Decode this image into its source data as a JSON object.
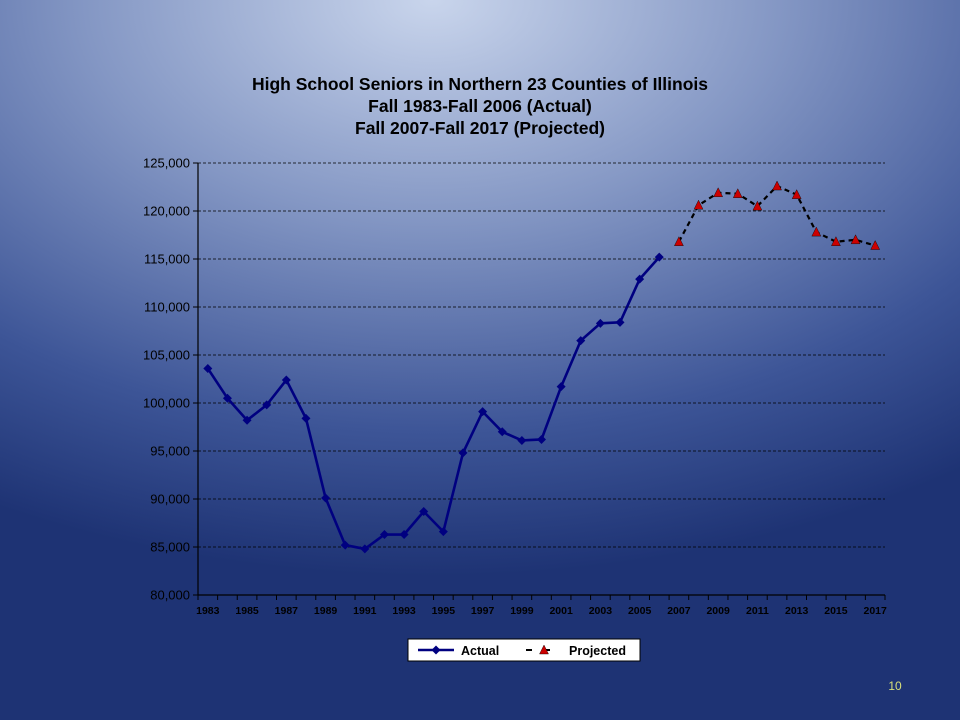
{
  "slide": {
    "number": "10"
  },
  "colors": {
    "actual": "#000080",
    "projected_line": "#000000",
    "projected_marker": "#cc0000",
    "grid": "#000000"
  },
  "chart_data": {
    "type": "line",
    "title": [
      "High School Seniors in Northern 23 Counties of Illinois",
      "Fall 1983-Fall 2006 (Actual)",
      "Fall 2007-Fall 2017 (Projected)"
    ],
    "xlabel": "",
    "ylabel": "",
    "x": [
      1983,
      1984,
      1985,
      1986,
      1987,
      1988,
      1989,
      1990,
      1991,
      1992,
      1993,
      1994,
      1995,
      1996,
      1997,
      1998,
      1999,
      2000,
      2001,
      2002,
      2003,
      2004,
      2005,
      2006,
      2007,
      2008,
      2009,
      2010,
      2011,
      2012,
      2013,
      2014,
      2015,
      2016,
      2017
    ],
    "x_tick_labels": [
      "1983",
      "1985",
      "1987",
      "1989",
      "1991",
      "1993",
      "1995",
      "1997",
      "1999",
      "2001",
      "2003",
      "2005",
      "2007",
      "2009",
      "2011",
      "2013",
      "2015",
      "2017"
    ],
    "ylim": [
      80000,
      125000
    ],
    "y_tick_labels": [
      "80,000",
      "85,000",
      "90,000",
      "95,000",
      "100,000",
      "105,000",
      "110,000",
      "115,000",
      "120,000",
      "125,000"
    ],
    "y_ticks": [
      80000,
      85000,
      90000,
      95000,
      100000,
      105000,
      110000,
      115000,
      120000,
      125000
    ],
    "grid": "horizontal dashed",
    "legend_position": "bottom",
    "series": [
      {
        "name": "Actual",
        "style": "solid line, diamond markers",
        "x": [
          1983,
          1984,
          1985,
          1986,
          1987,
          1988,
          1989,
          1990,
          1991,
          1992,
          1993,
          1994,
          1995,
          1996,
          1997,
          1998,
          1999,
          2000,
          2001,
          2002,
          2003,
          2004,
          2005,
          2006
        ],
        "values": [
          103600,
          100500,
          98200,
          99800,
          102400,
          98400,
          90100,
          85200,
          84800,
          86300,
          86300,
          88700,
          86600,
          94800,
          99100,
          97000,
          96100,
          96200,
          101700,
          106500,
          108300,
          108400,
          112900,
          115200
        ]
      },
      {
        "name": "Projected",
        "style": "dashed line, triangle markers",
        "x": [
          2007,
          2008,
          2009,
          2010,
          2011,
          2012,
          2013,
          2014,
          2015,
          2016,
          2017
        ],
        "values": [
          116800,
          120600,
          121900,
          121800,
          120500,
          122600,
          121700,
          117800,
          116800,
          117000,
          116400
        ]
      }
    ]
  }
}
